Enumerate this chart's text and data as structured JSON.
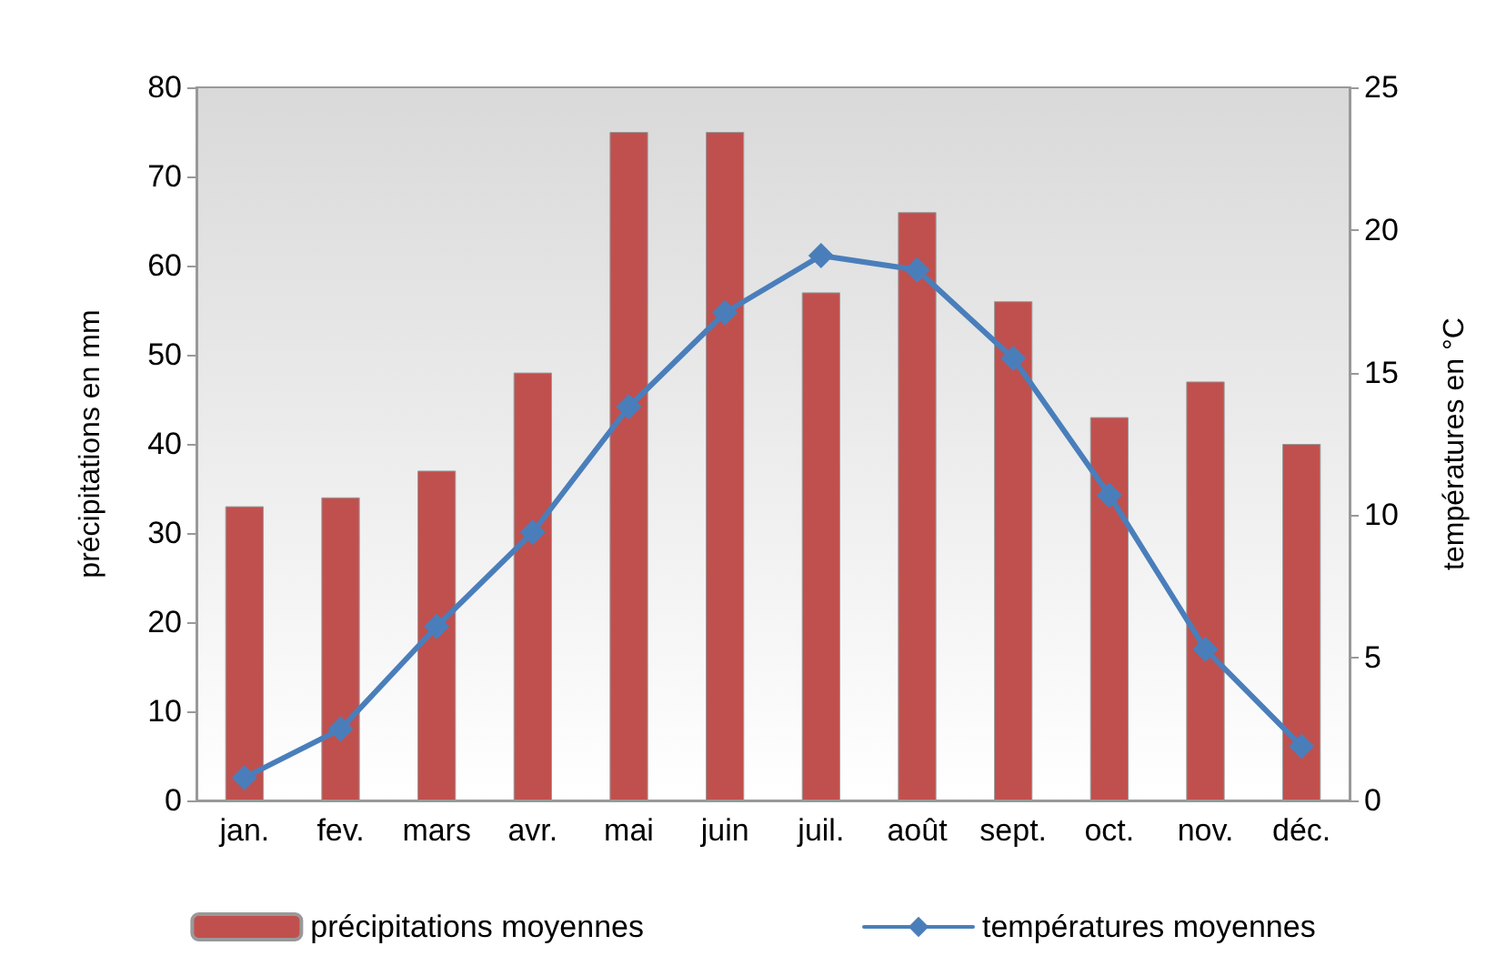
{
  "chart_data": {
    "type": "bar",
    "categories": [
      "jan.",
      "fev.",
      "mars",
      "avr.",
      "mai",
      "juin",
      "juil.",
      "août",
      "sept.",
      "oct.",
      "nov.",
      "déc."
    ],
    "series": [
      {
        "name": "précipitations moyennes",
        "color": "#c0504d",
        "values": [
          33,
          34,
          37,
          48,
          75,
          75,
          57,
          66,
          56,
          43,
          47,
          40
        ]
      },
      {
        "name": "températures moyennes",
        "type": "line",
        "axis": "y2",
        "color": "#4a7ebb",
        "marker": "diamond",
        "values": [
          0.8,
          2.5,
          6.1,
          9.4,
          13.8,
          17.1,
          19.1,
          18.6,
          15.5,
          10.7,
          5.3,
          1.9
        ]
      }
    ],
    "ylabel": "précipitations en mm",
    "y2label": "températures en °C",
    "ylim": [
      0,
      80
    ],
    "yticks": [
      0,
      10,
      20,
      30,
      40,
      50,
      60,
      70,
      80
    ],
    "y2lim": [
      0,
      25
    ],
    "y2ticks": [
      0,
      5,
      10,
      15,
      20,
      25
    ],
    "grid": false,
    "legend": "bottom"
  }
}
